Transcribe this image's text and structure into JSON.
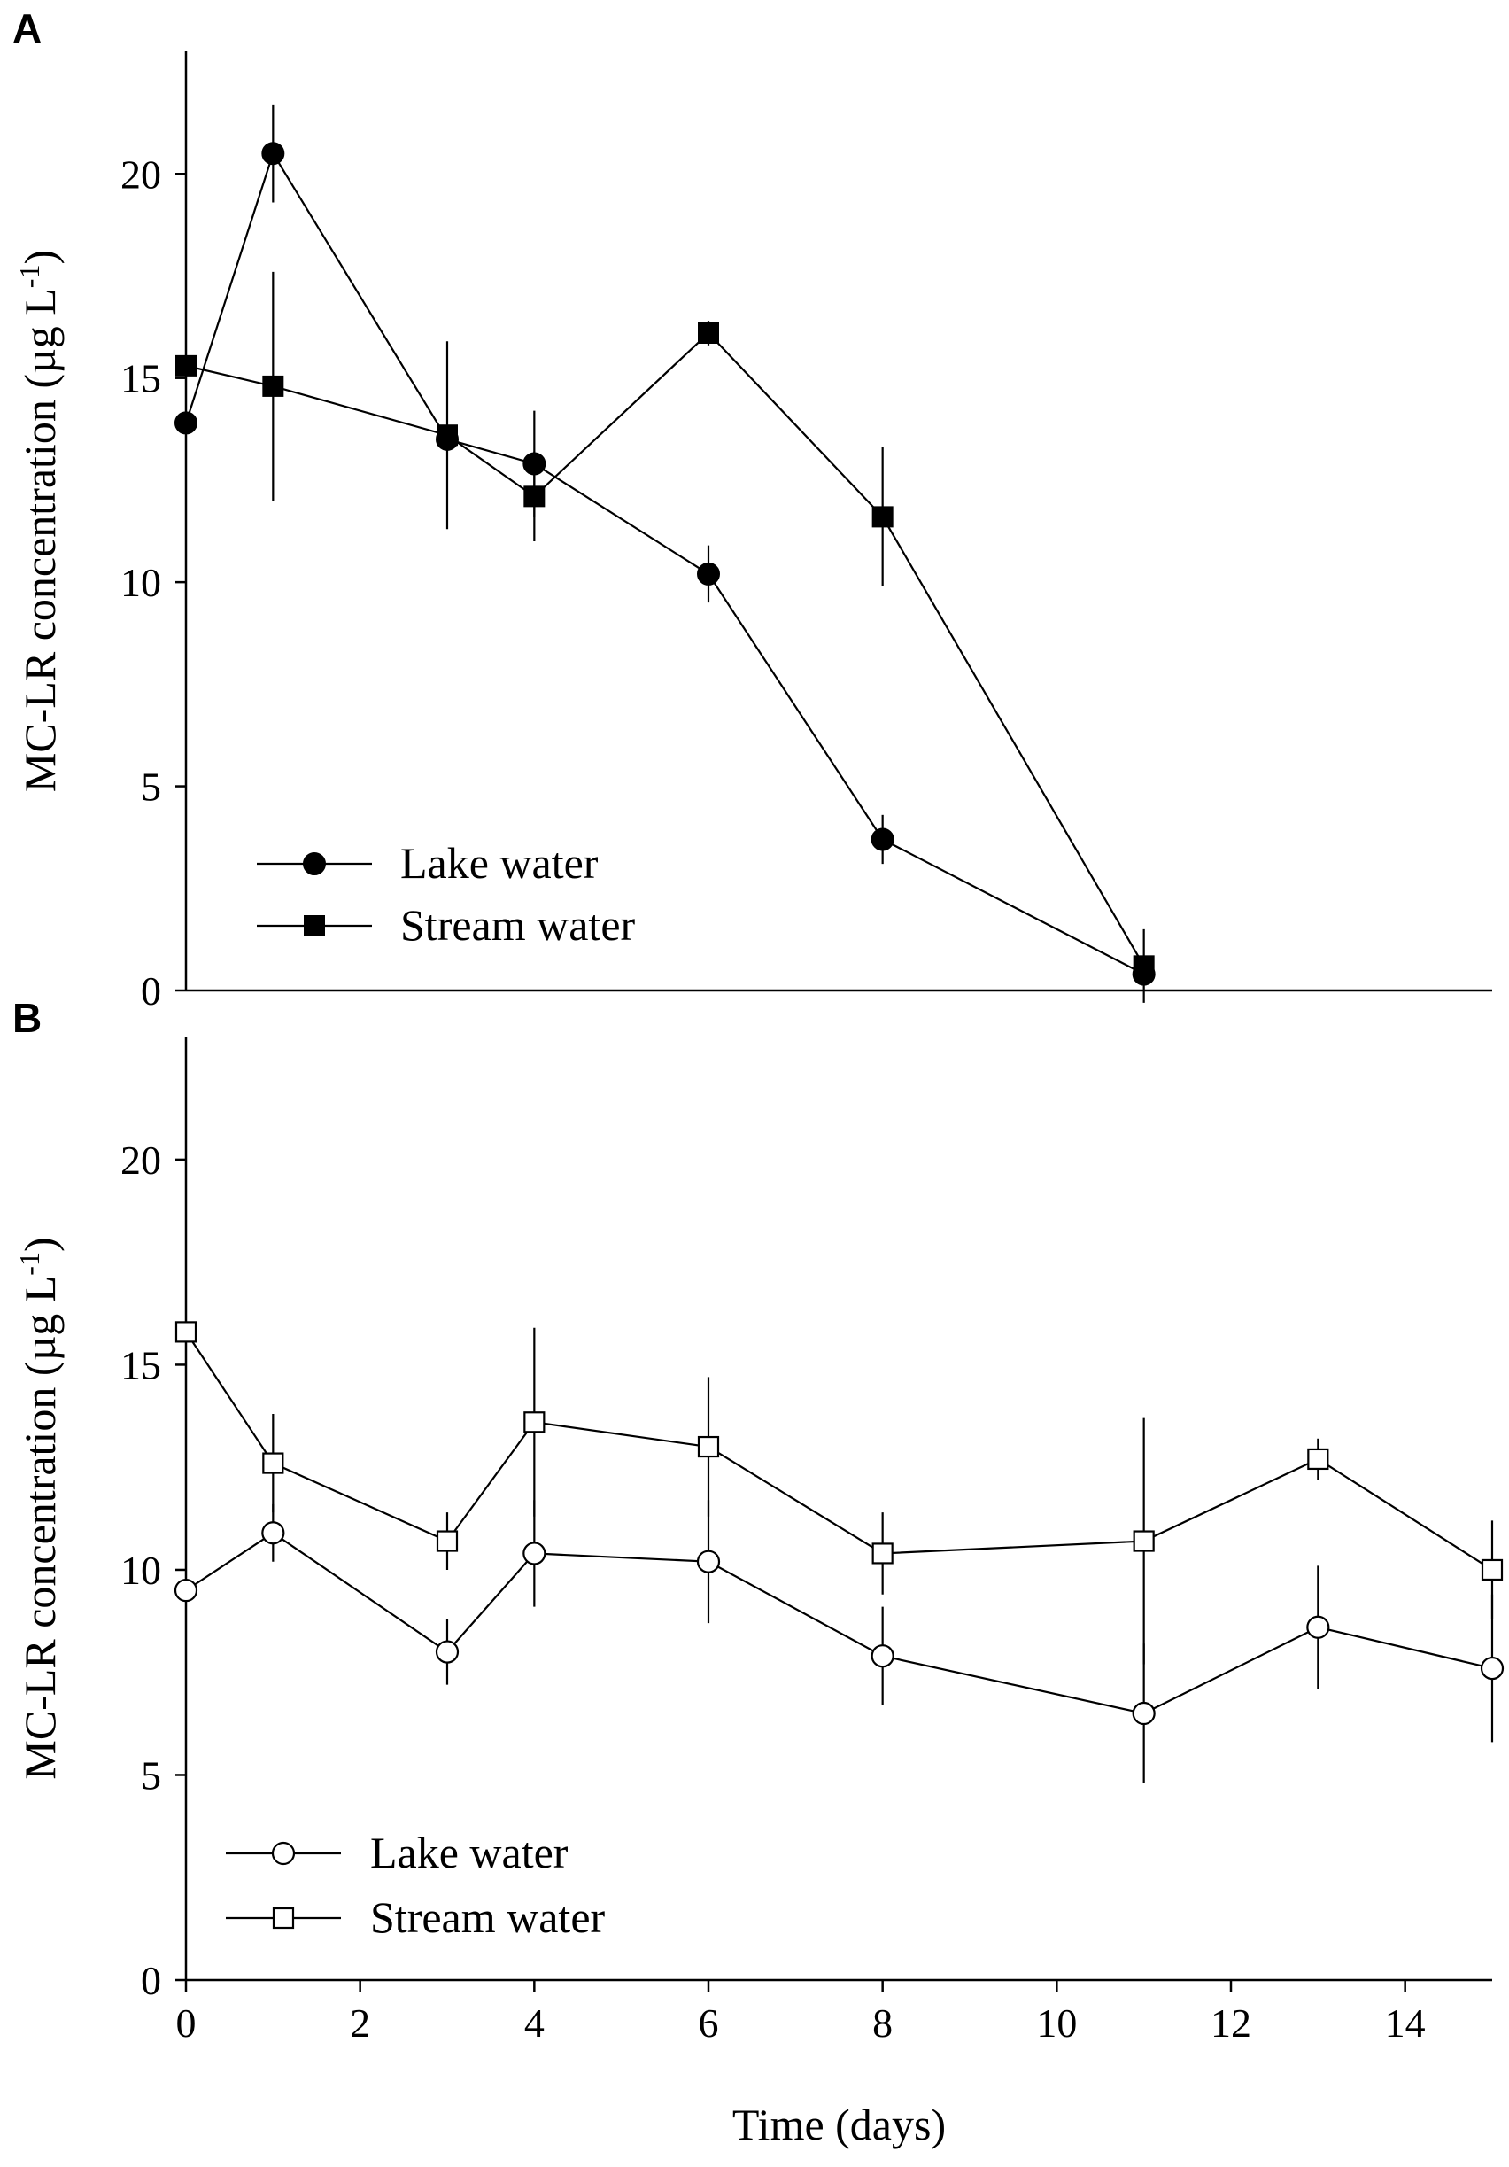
{
  "chart_data": [
    {
      "type": "line",
      "panel_label": "A",
      "ylabel": "MC-LR concentration (µg L",
      "ylabel_sup": "-1",
      "xlabel": "",
      "xlim": [
        0,
        15
      ],
      "ylim": [
        0,
        23
      ],
      "yticks": [
        0,
        5,
        10,
        15,
        20
      ],
      "xticks": [],
      "marker_style": "filled",
      "series": [
        {
          "name": "Lake water",
          "marker": "circle",
          "x": [
            0,
            1,
            3,
            4,
            6,
            8,
            11
          ],
          "y": [
            13.9,
            20.5,
            13.5,
            12.9,
            10.2,
            3.7,
            0.4
          ],
          "err": [
            0.0,
            1.2,
            0.0,
            1.3,
            0.7,
            0.6,
            0.0
          ]
        },
        {
          "name": "Stream water",
          "marker": "square",
          "x": [
            0,
            1,
            3,
            4,
            6,
            8,
            11
          ],
          "y": [
            15.3,
            14.8,
            13.6,
            12.1,
            16.1,
            11.6,
            0.6
          ],
          "err": [
            0.0,
            2.8,
            2.3,
            1.1,
            0.3,
            1.7,
            0.9
          ]
        }
      ]
    },
    {
      "type": "line",
      "panel_label": "B",
      "ylabel": "MC-LR concentration (µg L",
      "ylabel_sup": "-1",
      "xlabel": "Time (days)",
      "xlim": [
        0,
        15
      ],
      "ylim": [
        0,
        23
      ],
      "yticks": [
        0,
        5,
        10,
        15,
        20
      ],
      "xticks": [
        0,
        2,
        4,
        6,
        8,
        10,
        12,
        14
      ],
      "marker_style": "open",
      "series": [
        {
          "name": "Lake water",
          "marker": "circle",
          "x": [
            0,
            1,
            3,
            4,
            6,
            8,
            11,
            13,
            15
          ],
          "y": [
            9.5,
            10.9,
            8.0,
            10.4,
            10.2,
            7.9,
            6.5,
            8.6,
            7.6
          ],
          "err": [
            0.0,
            0.7,
            0.8,
            1.3,
            1.5,
            1.2,
            1.7,
            1.5,
            1.8
          ]
        },
        {
          "name": "Stream water",
          "marker": "square",
          "x": [
            0,
            1,
            3,
            4,
            6,
            8,
            11,
            13,
            15
          ],
          "y": [
            15.8,
            12.6,
            10.7,
            13.6,
            13.0,
            10.4,
            10.7,
            12.7,
            10.0
          ],
          "err": [
            0.0,
            1.2,
            0.7,
            2.3,
            1.7,
            1.0,
            3.0,
            0.5,
            1.2
          ]
        }
      ]
    }
  ]
}
